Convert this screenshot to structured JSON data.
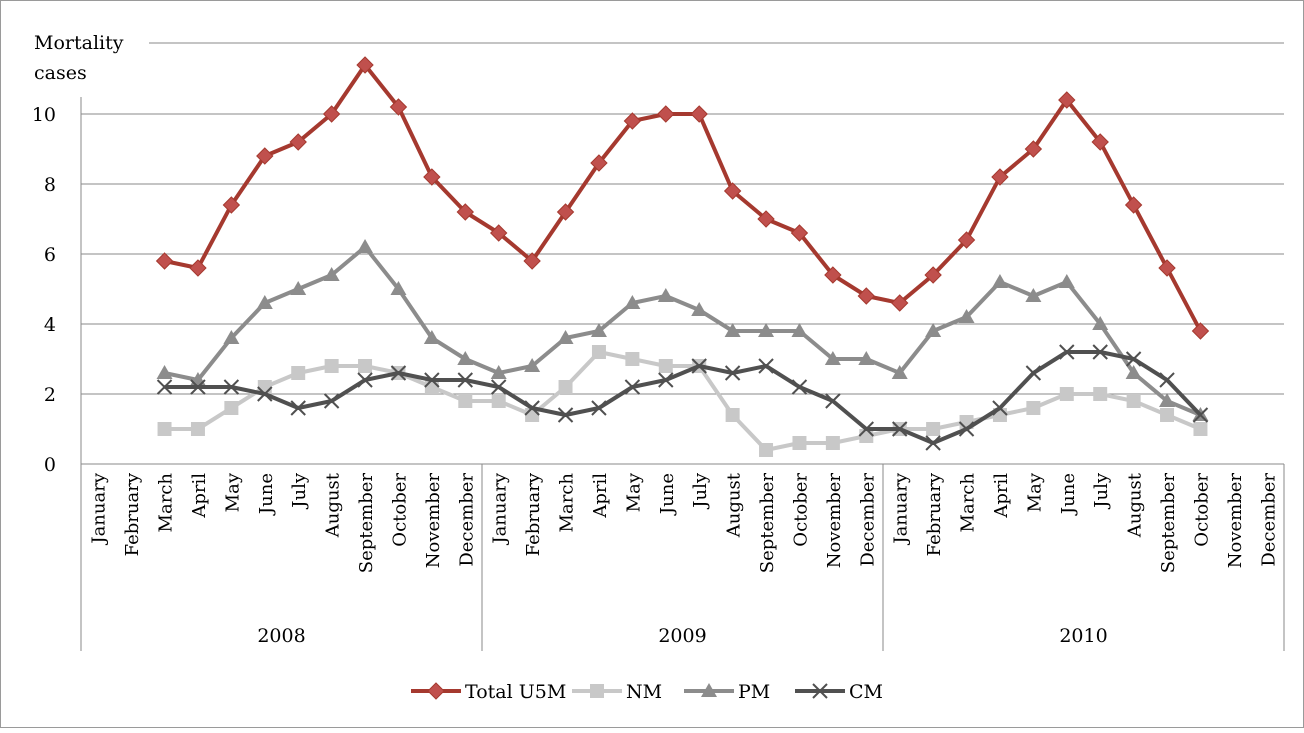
{
  "chart_data": {
    "type": "line",
    "ylabel_line1": "Mortality",
    "ylabel_line2": "cases",
    "ylim": [
      0,
      12
    ],
    "yticks": [
      0,
      2,
      4,
      6,
      8,
      10
    ],
    "grid": true,
    "legend_position": "bottom",
    "months": [
      "January",
      "February",
      "March",
      "April",
      "May",
      "June",
      "July",
      "August",
      "September",
      "October",
      "November",
      "December"
    ],
    "years": [
      "2008",
      "2009",
      "2010"
    ],
    "series": [
      {
        "name": "Total U5M",
        "color": "#c0504d",
        "line": "#a5392f",
        "marker": "diamond",
        "values": [
          null,
          null,
          5.8,
          5.6,
          7.4,
          8.8,
          9.2,
          10.0,
          11.4,
          10.2,
          8.2,
          7.2,
          6.6,
          5.8,
          7.2,
          8.6,
          9.8,
          10.0,
          10.0,
          7.8,
          7.0,
          6.6,
          5.4,
          4.8,
          4.6,
          5.4,
          6.4,
          8.2,
          9.0,
          10.4,
          9.2,
          7.4,
          5.6,
          3.8,
          null,
          null
        ]
      },
      {
        "name": "NM",
        "color": "#c8c8c8",
        "line": "#c8c8c8",
        "marker": "square",
        "values": [
          null,
          null,
          1.0,
          1.0,
          1.6,
          2.2,
          2.6,
          2.8,
          2.8,
          2.6,
          2.2,
          1.8,
          1.8,
          1.4,
          2.2,
          3.2,
          3.0,
          2.8,
          2.8,
          1.4,
          0.4,
          0.6,
          0.6,
          0.8,
          1.0,
          1.0,
          1.2,
          1.4,
          1.6,
          2.0,
          2.0,
          1.8,
          1.4,
          1.0,
          null,
          null
        ]
      },
      {
        "name": "PM",
        "color": "#8c8c8c",
        "line": "#8c8c8c",
        "marker": "triangle",
        "values": [
          null,
          null,
          2.6,
          2.4,
          3.6,
          4.6,
          5.0,
          5.4,
          6.2,
          5.0,
          3.6,
          3.0,
          2.6,
          2.8,
          3.6,
          3.8,
          4.6,
          4.8,
          4.4,
          3.8,
          3.8,
          3.8,
          3.0,
          3.0,
          2.6,
          3.8,
          4.2,
          5.2,
          4.8,
          5.2,
          4.0,
          2.6,
          1.8,
          1.4,
          null,
          null
        ]
      },
      {
        "name": "CM",
        "color": "#505050",
        "line": "#505050",
        "marker": "x",
        "values": [
          null,
          null,
          2.2,
          2.2,
          2.2,
          2.0,
          1.6,
          1.8,
          2.4,
          2.6,
          2.4,
          2.4,
          2.2,
          1.6,
          1.4,
          1.6,
          2.2,
          2.4,
          2.8,
          2.6,
          2.8,
          2.2,
          1.8,
          1.0,
          1.0,
          0.6,
          1.0,
          1.6,
          2.6,
          3.2,
          3.2,
          3.0,
          2.4,
          1.4,
          null,
          null
        ]
      }
    ]
  }
}
